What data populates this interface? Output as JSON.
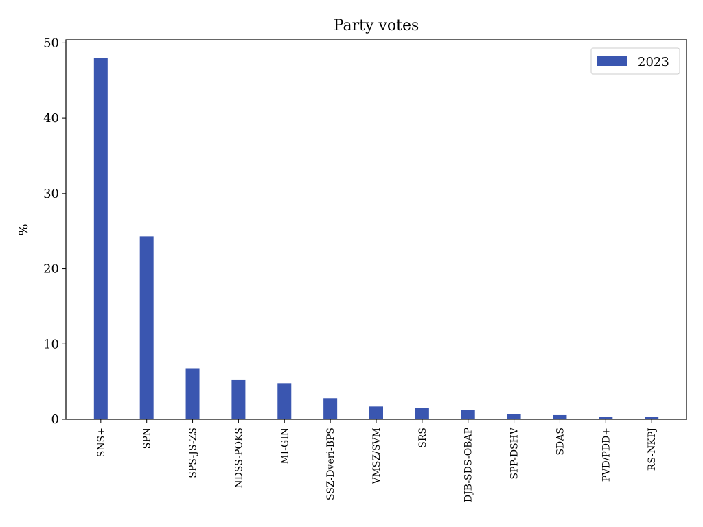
{
  "chart_data": {
    "type": "bar",
    "title": "Party votes",
    "y_label": "%",
    "categories": [
      "SNS+",
      "SPN",
      "SPS-JS-ZS",
      "NDSS-POKS",
      "MI-GIN",
      "SSZ-Dveri-BPS",
      "VMSZ/SVM",
      "SRS",
      "DJB-SDS-OBAP",
      "SPP-DSHV",
      "SDAS",
      "PVD/PDD+",
      "RS-NKPJ"
    ],
    "series": [
      {
        "name": "2023",
        "color": "#3a56b0",
        "values": [
          48.0,
          24.3,
          6.7,
          5.2,
          4.8,
          2.8,
          1.7,
          1.5,
          1.2,
          0.7,
          0.55,
          0.35,
          0.3
        ]
      }
    ],
    "ylim": [
      0,
      50.4
    ],
    "yticks": [
      0,
      10,
      20,
      30,
      40,
      50
    ],
    "grid": false,
    "legend": "upper right"
  }
}
